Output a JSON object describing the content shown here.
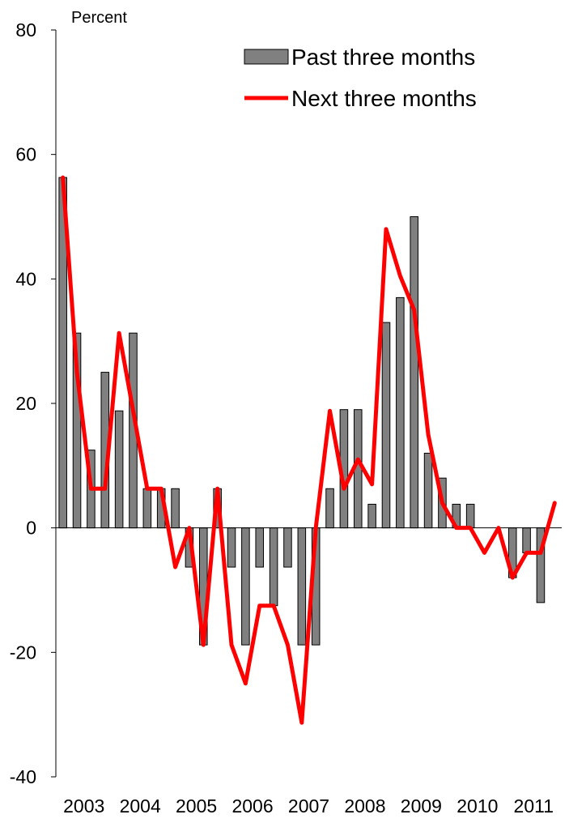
{
  "chart_data": {
    "type": "bar",
    "y_unit_label": "Percent",
    "ylim": [
      -40,
      80
    ],
    "y_ticks": [
      -40,
      -20,
      0,
      20,
      40,
      60,
      80
    ],
    "x_tick_labels": [
      "2003",
      "2004",
      "2005",
      "2006",
      "2007",
      "2008",
      "2009",
      "2010",
      "2011"
    ],
    "grid": false,
    "legend_position": "top-right",
    "colors": {
      "bars": "#808080",
      "bar_stroke": "#000000",
      "line": "#ff0000"
    },
    "series": [
      {
        "name": "Past three months",
        "type": "bar",
        "values": [
          56.3,
          31.3,
          12.5,
          25.0,
          18.8,
          31.3,
          6.3,
          6.3,
          6.3,
          -6.3,
          -18.8,
          6.3,
          -6.3,
          -18.8,
          -6.3,
          -12.5,
          -6.3,
          -18.8,
          -18.8,
          6.3,
          19.0,
          19.0,
          3.8,
          33.0,
          37.0,
          50.0,
          12.0,
          8.0,
          3.8,
          3.8,
          0.0,
          0.0,
          -8.0,
          -4.0,
          -12.0,
          0.0
        ]
      },
      {
        "name": "Next three months",
        "type": "line",
        "values": [
          56.3,
          25.0,
          6.3,
          6.3,
          31.3,
          18.8,
          6.3,
          6.3,
          -6.3,
          0.0,
          -18.8,
          6.3,
          -18.8,
          -25.0,
          -12.5,
          -12.5,
          -18.8,
          -31.3,
          0.0,
          18.8,
          6.3,
          11.0,
          7.0,
          48.0,
          40.5,
          35.0,
          15.0,
          4.0,
          0.0,
          0.0,
          -4.0,
          0.0,
          -8.0,
          -4.0,
          -4.0,
          4.0
        ]
      }
    ]
  }
}
